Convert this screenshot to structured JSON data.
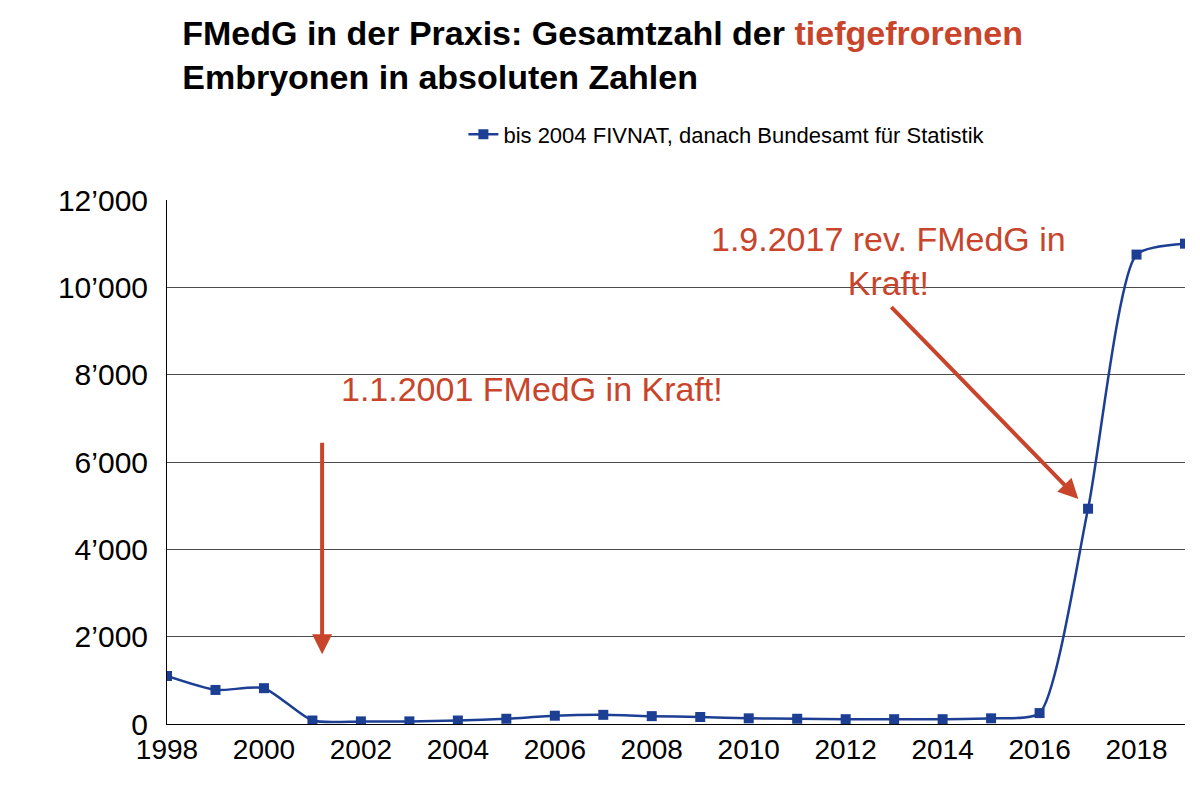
{
  "chart_data": {
    "type": "line",
    "title": "FMedG in der Praxis: Gesamtzahl der tiefgefrorenen Embryonen in absoluten Zahlen",
    "title_highlight": "tiefgefrorenen",
    "x": [
      1998,
      1999,
      2000,
      2001,
      2002,
      2003,
      2004,
      2005,
      2006,
      2007,
      2008,
      2009,
      2010,
      2011,
      2012,
      2013,
      2014,
      2015,
      2016,
      2017,
      2018,
      2019
    ],
    "series": [
      {
        "name": "bis 2004 FIVNAT, danach Bundesamt für Statistik",
        "color": "#1c3f94",
        "marker": "square",
        "line_style": "solid",
        "values": [
          1100,
          780,
          820,
          80,
          60,
          60,
          80,
          120,
          190,
          210,
          180,
          160,
          130,
          120,
          110,
          110,
          110,
          130,
          250,
          4930,
          10750,
          11000
        ]
      }
    ],
    "xlim": [
      1998,
      2019
    ],
    "xticks": [
      1998,
      2000,
      2002,
      2004,
      2006,
      2008,
      2010,
      2012,
      2014,
      2016,
      2018
    ],
    "ylim": [
      0,
      12000
    ],
    "yticks": [
      0,
      {
        "value": 2000,
        "label": "2’000"
      },
      {
        "value": 4000,
        "label": "4’000"
      },
      {
        "value": 6000,
        "label": "6’000"
      },
      {
        "value": 8000,
        "label": "8’000"
      },
      {
        "value": 10000,
        "label": "10’000"
      },
      {
        "value": 12000,
        "label": "12’000"
      }
    ],
    "grid": true,
    "legend": "top",
    "annotations": [
      {
        "text": "1.1.2001 FMedG in Kraft!",
        "x": 2001.2,
        "y": 1600,
        "color": "#c8452c"
      },
      {
        "text": "1.9.2017 rev. FMedG in\nKraft!",
        "x": 2016.8,
        "y": 5150,
        "color": "#c8452c"
      }
    ]
  }
}
